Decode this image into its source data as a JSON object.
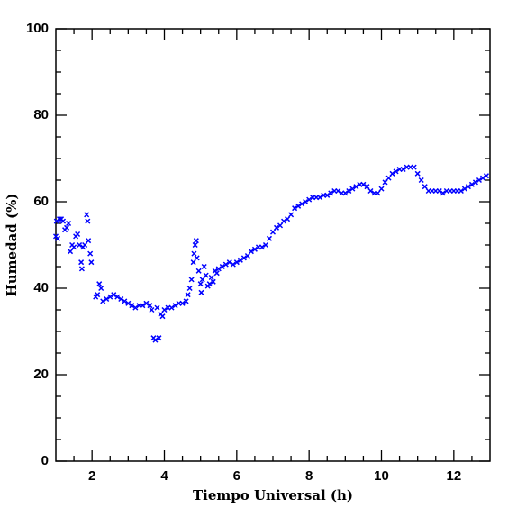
{
  "chart_data": {
    "type": "scatter",
    "xlabel": "Tiempo Universal (h)",
    "ylabel": "Humedad (%)",
    "xlim": [
      1,
      13
    ],
    "ylim": [
      0,
      100
    ],
    "xticks": [
      2,
      4,
      6,
      8,
      10,
      12
    ],
    "yticks": [
      0,
      20,
      40,
      60,
      80,
      100
    ],
    "xminorticks": [
      1.5,
      2.5,
      3,
      3.5,
      4.5,
      5,
      5.5,
      6.5,
      7,
      7.5,
      8.5,
      9,
      9.5,
      10.5,
      11,
      11.5,
      12.5
    ],
    "yminorticks": [
      5,
      10,
      15,
      25,
      30,
      35,
      45,
      50,
      55,
      65,
      70,
      75,
      85,
      90,
      95
    ],
    "color": "#0000ff",
    "x": [
      1.0,
      1.02,
      1.05,
      1.1,
      1.15,
      1.2,
      1.25,
      1.3,
      1.35,
      1.4,
      1.45,
      1.5,
      1.55,
      1.6,
      1.65,
      1.7,
      1.72,
      1.75,
      1.8,
      1.85,
      1.88,
      1.9,
      1.95,
      1.98,
      2.1,
      2.15,
      2.2,
      2.25,
      2.3,
      2.4,
      2.5,
      2.6,
      2.7,
      2.8,
      2.9,
      3.0,
      3.1,
      3.2,
      3.3,
      3.4,
      3.5,
      3.6,
      3.65,
      3.7,
      3.75,
      3.8,
      3.85,
      3.9,
      3.95,
      4.0,
      4.1,
      4.2,
      4.3,
      4.4,
      4.5,
      4.6,
      4.65,
      4.7,
      4.75,
      4.8,
      4.82,
      4.85,
      4.88,
      4.9,
      4.95,
      5.0,
      5.02,
      5.05,
      5.1,
      5.15,
      5.2,
      5.25,
      5.3,
      5.35,
      5.4,
      5.45,
      5.5,
      5.6,
      5.7,
      5.8,
      5.9,
      6.0,
      6.1,
      6.2,
      6.3,
      6.4,
      6.5,
      6.6,
      6.7,
      6.8,
      6.9,
      7.0,
      7.1,
      7.2,
      7.3,
      7.4,
      7.5,
      7.6,
      7.7,
      7.8,
      7.9,
      8.0,
      8.1,
      8.2,
      8.3,
      8.4,
      8.5,
      8.6,
      8.7,
      8.8,
      8.9,
      9.0,
      9.1,
      9.2,
      9.3,
      9.4,
      9.5,
      9.6,
      9.7,
      9.8,
      9.9,
      10.0,
      10.1,
      10.2,
      10.3,
      10.4,
      10.5,
      10.6,
      10.7,
      10.8,
      10.9,
      11.0,
      11.1,
      11.2,
      11.3,
      11.4,
      11.5,
      11.6,
      11.7,
      11.8,
      11.9,
      12.0,
      12.1,
      12.2,
      12.3,
      12.4,
      12.5,
      12.6,
      12.7,
      12.8,
      12.9
    ],
    "values": [
      52,
      55.5,
      51.5,
      56,
      56,
      55.5,
      53.5,
      54,
      55,
      48.5,
      50,
      49.5,
      52,
      52.5,
      50,
      46,
      44.5,
      49.5,
      50,
      57,
      55.5,
      51,
      48,
      46,
      38,
      38.5,
      41,
      40,
      37,
      37.5,
      38,
      38.5,
      38,
      37.5,
      37,
      36.5,
      36,
      35.5,
      36,
      36,
      36.5,
      36,
      35,
      28.5,
      28,
      35.5,
      28.5,
      34,
      33.5,
      35,
      35.5,
      35.5,
      36,
      36.5,
      36.5,
      37,
      38.5,
      40,
      42,
      46,
      48,
      50,
      51,
      47,
      44,
      41,
      39,
      42,
      45,
      43,
      40.5,
      41,
      42.5,
      41.5,
      44,
      43.5,
      44.5,
      45,
      45.5,
      46,
      45.5,
      46,
      46.5,
      47,
      47.5,
      48.5,
      49,
      49.5,
      49.5,
      50,
      51.5,
      53,
      54,
      54.5,
      55.5,
      56,
      57,
      58.5,
      59,
      59.5,
      60,
      60.5,
      61,
      61,
      61,
      61.5,
      61.5,
      62,
      62.5,
      62.5,
      62,
      62,
      62.5,
      63,
      63.5,
      64,
      64,
      63.5,
      62.5,
      62,
      62,
      63,
      64.5,
      65.5,
      66.5,
      67,
      67.5,
      67.5,
      68,
      68,
      68,
      66.5,
      65,
      63.5,
      62.5,
      62.5,
      62.5,
      62.5,
      62,
      62.5,
      62.5,
      62.5,
      62.5,
      62.5,
      63,
      63.5,
      64,
      64.5,
      65,
      65.5,
      66
    ]
  }
}
